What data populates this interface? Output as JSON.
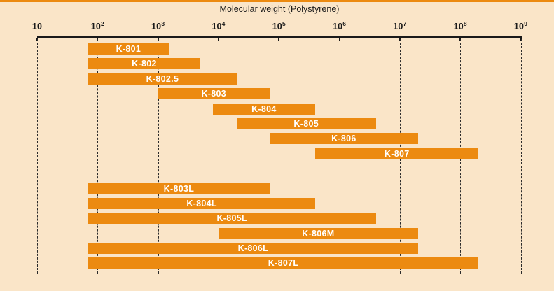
{
  "colors": {
    "background": "#FAE5C8",
    "bar": "#EC8A10",
    "bar_label": "#FFFFFF",
    "axis": "#1A1A1A",
    "gridline": "#2B2B2B",
    "accent_strip": "#EC8A10"
  },
  "chart_data": {
    "type": "bar",
    "subtype": "horizontal-log-range",
    "title": "Molecular weight (Polystyrene)",
    "x_scale": "log10",
    "xlim": [
      10,
      1000000000
    ],
    "xlim_log10": [
      1,
      9
    ],
    "grid": "vertical-dashed-per-decade",
    "x_ticks": [
      {
        "base": "10",
        "exp": ""
      },
      {
        "base": "10",
        "exp": "2"
      },
      {
        "base": "10",
        "exp": "3"
      },
      {
        "base": "10",
        "exp": "4"
      },
      {
        "base": "10",
        "exp": "5"
      },
      {
        "base": "10",
        "exp": "6"
      },
      {
        "base": "10",
        "exp": "7"
      },
      {
        "base": "10",
        "exp": "8"
      },
      {
        "base": "10",
        "exp": "9"
      }
    ],
    "groups": [
      {
        "name": "standard-columns",
        "bars": [
          {
            "label": "K-801",
            "from": 70,
            "to": 1500
          },
          {
            "label": "K-802",
            "from": 70,
            "to": 5000
          },
          {
            "label": "K-802.5",
            "from": 70,
            "to": 20000
          },
          {
            "label": "K-803",
            "from": 1000,
            "to": 70000
          },
          {
            "label": "K-804",
            "from": 8000,
            "to": 400000
          },
          {
            "label": "K-805",
            "from": 20000,
            "to": 4000000
          },
          {
            "label": "K-806",
            "from": 70000,
            "to": 20000000
          },
          {
            "label": "K-807",
            "from": 400000,
            "to": 200000000
          }
        ]
      },
      {
        "name": "linear-mixed-columns",
        "bars": [
          {
            "label": "K-803L",
            "from": 70,
            "to": 70000
          },
          {
            "label": "K-804L",
            "from": 70,
            "to": 400000
          },
          {
            "label": "K-805L",
            "from": 70,
            "to": 4000000
          },
          {
            "label": "K-806M",
            "from": 10000,
            "to": 20000000
          },
          {
            "label": "K-806L",
            "from": 70,
            "to": 20000000
          },
          {
            "label": "K-807L",
            "from": 70,
            "to": 200000000
          }
        ]
      }
    ]
  }
}
